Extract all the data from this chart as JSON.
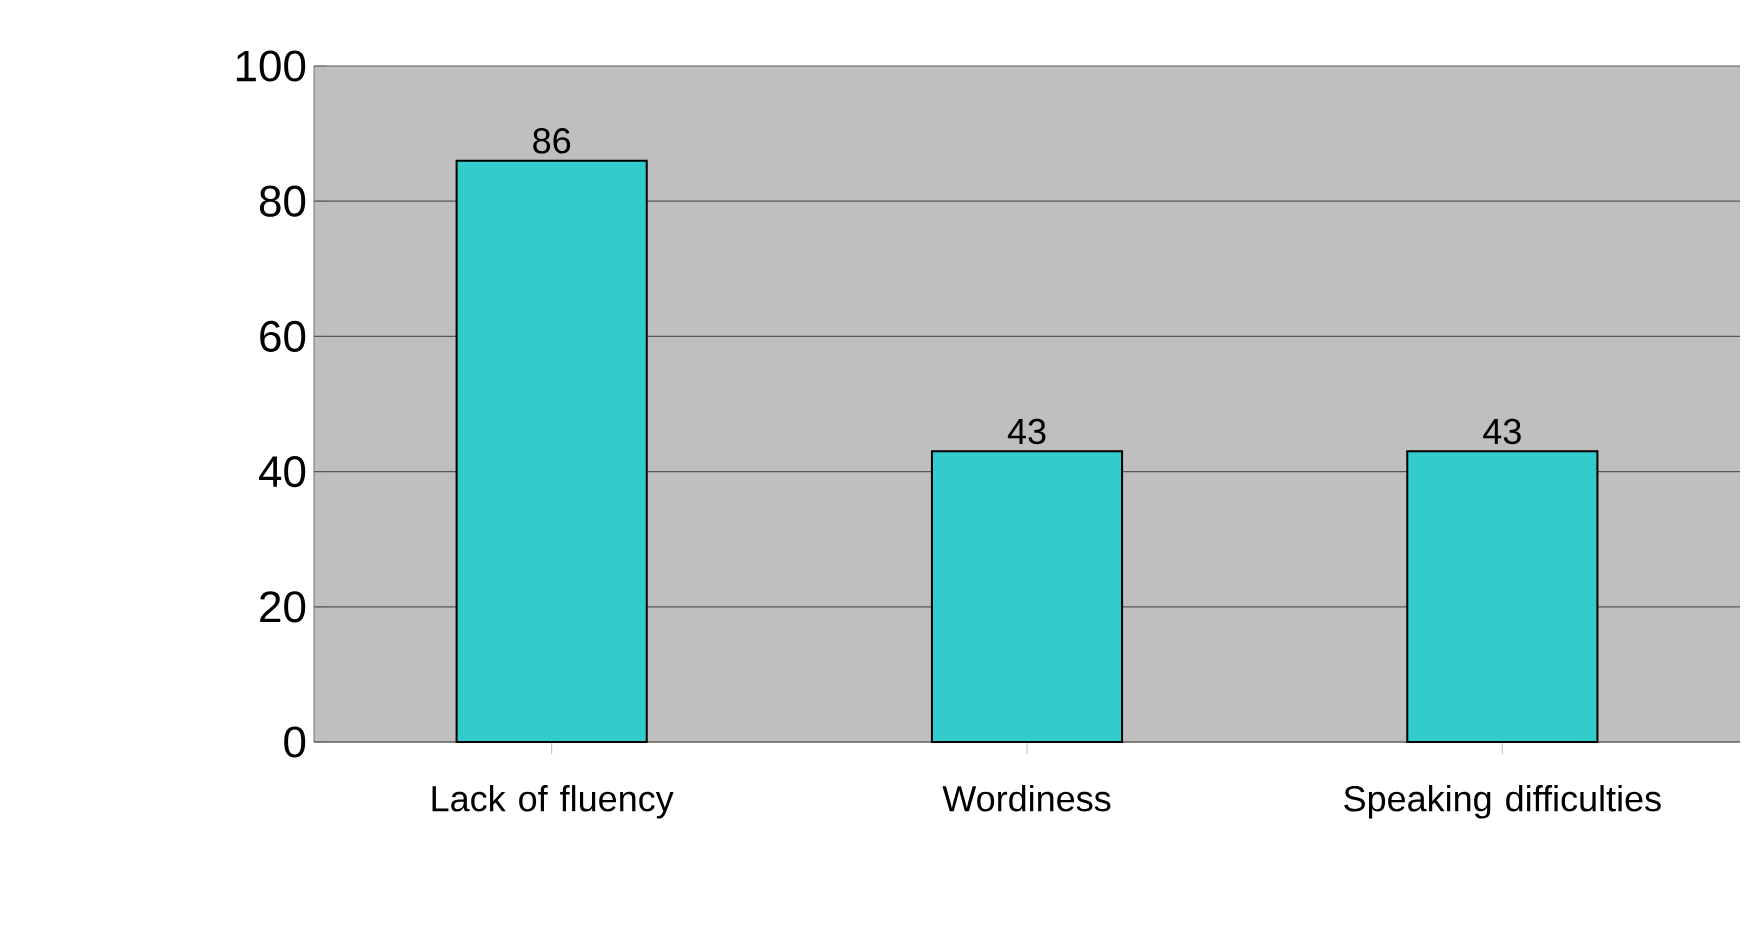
{
  "chart_data": {
    "type": "bar",
    "categories": [
      "Lack of fluency",
      "Wordiness",
      "Speaking difficulties"
    ],
    "values": [
      86,
      43,
      43
    ],
    "color": "#33cccc",
    "ylim": [
      0,
      100
    ],
    "yticks": [
      0,
      20,
      40,
      60,
      80,
      100
    ],
    "grid": "y",
    "data_labels": true
  }
}
